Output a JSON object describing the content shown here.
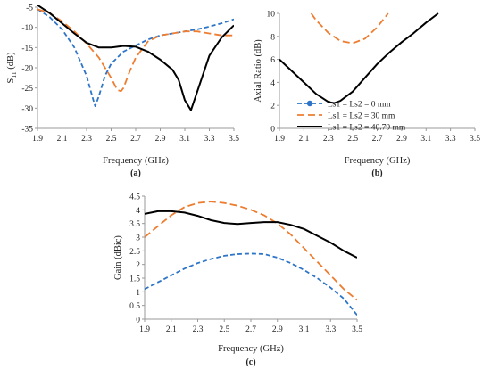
{
  "colors": {
    "ls_0": "#2E75C8",
    "ls_30": "#ED7D31",
    "ls_40": "#000000"
  },
  "legend": {
    "placement": "right, inside panel b",
    "entries": [
      "Ls1 = Ls2 = 0 mm",
      "Ls1 = Ls2 = 30 mm",
      "Ls1 = Ls2 = 40.79 mm"
    ]
  },
  "chart_data": [
    {
      "type": "line",
      "caption": "(a)",
      "xlabel": "Frequency (GHz)",
      "ylabel_main": "S",
      "ylabel_sub": "11",
      "ylabel_tail": " (dB)",
      "xlim": [
        1.9,
        3.5
      ],
      "ylim": [
        -35,
        -5
      ],
      "xticks": [
        1.9,
        2.1,
        2.3,
        2.5,
        2.7,
        2.9,
        3.1,
        3.3,
        3.5
      ],
      "yticks": [
        -35,
        -30,
        -25,
        -20,
        -15,
        -10,
        -5
      ],
      "grid": false,
      "series": [
        {
          "key": "ls_0",
          "name": "Ls1 = Ls2 = 0 mm",
          "style": "dashed",
          "x": [
            1.9,
            2.0,
            2.1,
            2.2,
            2.3,
            2.35,
            2.37,
            2.4,
            2.45,
            2.5,
            2.6,
            2.7,
            2.8,
            2.9,
            3.0,
            3.1,
            3.2,
            3.3,
            3.4,
            3.5
          ],
          "y": [
            -5.5,
            -7.5,
            -10.5,
            -15,
            -22,
            -27.5,
            -29.5,
            -27,
            -22,
            -19,
            -16,
            -14.5,
            -13,
            -12,
            -11.5,
            -11,
            -10.5,
            -9.8,
            -9,
            -8
          ]
        },
        {
          "key": "ls_30",
          "name": "Ls1 = Ls2 = 30 mm",
          "style": "dashed",
          "x": [
            1.9,
            2.0,
            2.1,
            2.2,
            2.3,
            2.4,
            2.5,
            2.55,
            2.58,
            2.6,
            2.65,
            2.7,
            2.8,
            2.9,
            3.0,
            3.1,
            3.2,
            3.3,
            3.4,
            3.5
          ],
          "y": [
            -5.5,
            -6.5,
            -8.5,
            -11,
            -14,
            -17.5,
            -22.5,
            -25.5,
            -25.8,
            -25,
            -21,
            -17.5,
            -13.5,
            -12,
            -11.5,
            -11,
            -11,
            -11.5,
            -12,
            -12
          ]
        },
        {
          "key": "ls_40",
          "name": "Ls1 = Ls2 = 40.79 mm",
          "style": "solid",
          "x": [
            1.9,
            2.0,
            2.1,
            2.2,
            2.3,
            2.4,
            2.5,
            2.6,
            2.7,
            2.8,
            2.9,
            3.0,
            3.05,
            3.1,
            3.15,
            3.2,
            3.3,
            3.4,
            3.5
          ],
          "y": [
            -4.5,
            -6.5,
            -9,
            -11.5,
            -13.8,
            -15,
            -15,
            -14.6,
            -14.8,
            -16,
            -18,
            -20.5,
            -23,
            -28,
            -30.5,
            -26,
            -17,
            -12.5,
            -9.5
          ]
        }
      ]
    },
    {
      "type": "line",
      "caption": "(b)",
      "xlabel": "Frequency (GHz)",
      "ylabel": "Axial Ratio (dB)",
      "xlim": [
        1.9,
        3.5
      ],
      "ylim": [
        0,
        10
      ],
      "xticks": [
        1.9,
        2.1,
        2.3,
        2.5,
        2.7,
        2.9,
        3.1,
        3.3,
        3.5
      ],
      "yticks": [
        0,
        2,
        4,
        6,
        8,
        10
      ],
      "grid": false,
      "series": [
        {
          "key": "ls_30",
          "name": "Ls1 = Ls2 = 30 mm",
          "style": "dashed",
          "x": [
            2.16,
            2.2,
            2.3,
            2.4,
            2.5,
            2.6,
            2.7,
            2.79
          ],
          "y": [
            10,
            9.4,
            8.3,
            7.6,
            7.4,
            7.8,
            8.8,
            10
          ]
        },
        {
          "key": "ls_40",
          "name": "Ls1 = Ls2 = 40.79 mm",
          "style": "solid",
          "x": [
            1.9,
            2.0,
            2.1,
            2.2,
            2.3,
            2.35,
            2.4,
            2.5,
            2.6,
            2.7,
            2.8,
            2.9,
            3.0,
            3.1,
            3.2
          ],
          "y": [
            6.0,
            5.0,
            4.0,
            3.0,
            2.3,
            2.2,
            2.4,
            3.2,
            4.4,
            5.6,
            6.6,
            7.5,
            8.3,
            9.2,
            10
          ]
        }
      ]
    },
    {
      "type": "line",
      "caption": "(c)",
      "xlabel": "Frequency (GHz)",
      "ylabel": "Gain (dBic)",
      "xlim": [
        1.9,
        3.5
      ],
      "ylim": [
        0,
        4.5
      ],
      "xticks": [
        1.9,
        2.1,
        2.3,
        2.5,
        2.7,
        2.9,
        3.1,
        3.3,
        3.5
      ],
      "yticks": [
        0,
        0.5,
        1,
        1.5,
        2,
        2.5,
        3,
        3.5,
        4,
        4.5
      ],
      "grid": false,
      "series": [
        {
          "key": "ls_0",
          "name": "Ls1 = Ls2 = 0 mm",
          "style": "dashed",
          "x": [
            1.9,
            2.0,
            2.1,
            2.2,
            2.3,
            2.4,
            2.5,
            2.6,
            2.7,
            2.8,
            2.9,
            3.0,
            3.1,
            3.2,
            3.3,
            3.4,
            3.5
          ],
          "y": [
            1.1,
            1.35,
            1.6,
            1.85,
            2.05,
            2.2,
            2.32,
            2.38,
            2.4,
            2.38,
            2.25,
            2.05,
            1.8,
            1.5,
            1.15,
            0.75,
            0.15
          ]
        },
        {
          "key": "ls_30",
          "name": "Ls1 = Ls2 = 30 mm",
          "style": "dashed",
          "x": [
            1.9,
            2.0,
            2.1,
            2.2,
            2.3,
            2.4,
            2.5,
            2.6,
            2.7,
            2.8,
            2.9,
            3.0,
            3.1,
            3.2,
            3.3,
            3.4,
            3.5
          ],
          "y": [
            3.0,
            3.4,
            3.8,
            4.1,
            4.25,
            4.3,
            4.25,
            4.15,
            4.0,
            3.8,
            3.5,
            3.1,
            2.6,
            2.1,
            1.6,
            1.1,
            0.7
          ]
        },
        {
          "key": "ls_40",
          "name": "Ls1 = Ls2 = 40.79 mm",
          "style": "solid",
          "x": [
            1.9,
            2.0,
            2.1,
            2.2,
            2.3,
            2.4,
            2.5,
            2.6,
            2.7,
            2.8,
            2.9,
            3.0,
            3.1,
            3.2,
            3.3,
            3.4,
            3.5
          ],
          "y": [
            3.85,
            3.95,
            3.95,
            3.9,
            3.78,
            3.62,
            3.52,
            3.48,
            3.52,
            3.55,
            3.55,
            3.45,
            3.3,
            3.05,
            2.8,
            2.5,
            2.25
          ]
        }
      ]
    }
  ]
}
